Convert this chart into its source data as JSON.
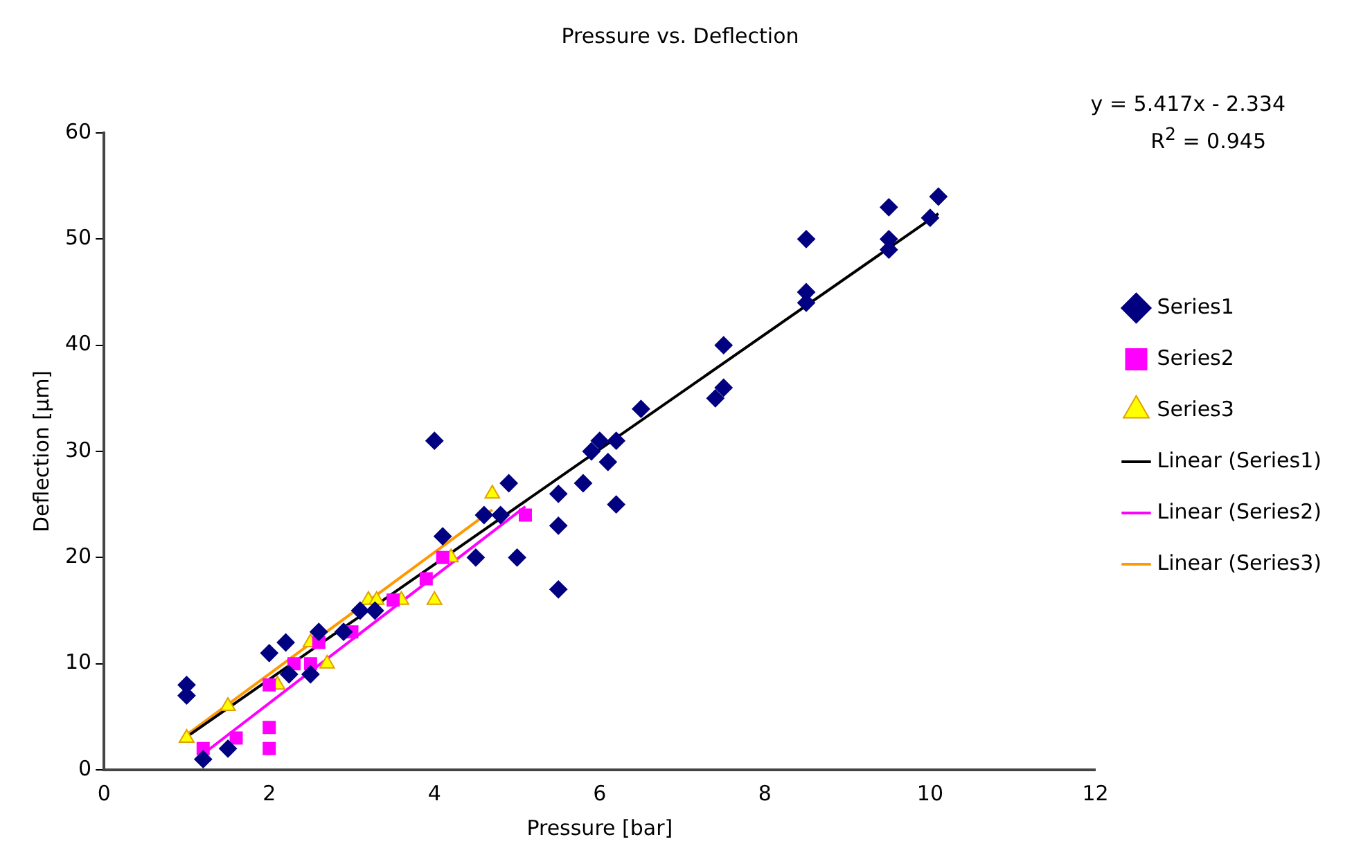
{
  "chart_data": {
    "type": "scatter",
    "title": "Pressure vs. Deflection",
    "xlabel": "Pressure [bar]",
    "ylabel": "Deflection [µm]",
    "xlim": [
      0,
      12
    ],
    "xticks": [
      0,
      2,
      4,
      6,
      8,
      10,
      12
    ],
    "ylim": [
      0,
      60
    ],
    "yticks": [
      0,
      10,
      20,
      30,
      40,
      50,
      60
    ],
    "grid": false,
    "legend": "right",
    "annotations": [
      "y = 5.417x - 2.334",
      "R$^{2}$ = 0.945"
    ],
    "series": [
      {
        "name": "Series1",
        "type": "scatter",
        "marker": "diamond",
        "color": "#000080",
        "x": [
          1.0,
          1.0,
          1.2,
          1.5,
          2.0,
          2.2,
          2.24,
          2.5,
          2.6,
          2.9,
          3.1,
          3.28,
          4.0,
          4.1,
          4.5,
          4.6,
          4.8,
          4.9,
          5.0,
          5.5,
          5.5,
          5.5,
          5.8,
          5.9,
          6.0,
          6.1,
          6.2,
          6.2,
          6.5,
          7.4,
          7.5,
          7.5,
          8.5,
          8.5,
          8.5,
          9.5,
          9.5,
          9.5,
          10.0,
          10.1
        ],
        "values": [
          8,
          7,
          1,
          2,
          11,
          12,
          9,
          9,
          13,
          13,
          15,
          15,
          31,
          22,
          20,
          24,
          24,
          27,
          20,
          26,
          23,
          17,
          27,
          30,
          31,
          29,
          31,
          25,
          34,
          35,
          36,
          40,
          50,
          45,
          44,
          53,
          50,
          49,
          52,
          54
        ]
      },
      {
        "name": "Series2",
        "type": "scatter",
        "marker": "square",
        "color": "#ff00ff",
        "x": [
          1.2,
          1.6,
          2.0,
          2.0,
          2.0,
          2.3,
          2.5,
          2.6,
          3.0,
          3.5,
          3.9,
          4.1,
          5.1
        ],
        "values": [
          2,
          3,
          4,
          2,
          8,
          10,
          10,
          12,
          13,
          16,
          18,
          20,
          24
        ]
      },
      {
        "name": "Series3",
        "type": "scatter",
        "marker": "triangle",
        "color": "#ffff00",
        "x": [
          1.0,
          1.5,
          2.1,
          2.5,
          2.7,
          3.2,
          3.3,
          3.6,
          4.0,
          4.2,
          4.7
        ],
        "values": [
          3,
          6,
          8,
          12,
          10,
          16,
          16,
          16,
          16,
          20,
          26
        ]
      },
      {
        "name": "Linear (Series1)",
        "type": "line",
        "marker": "none",
        "color": "#000000",
        "x": [
          1.0,
          10.1
        ],
        "values": [
          3.1,
          52.4
        ]
      },
      {
        "name": "Linear (Series2)",
        "type": "line",
        "marker": "none",
        "color": "#ff00ff",
        "x": [
          1.2,
          5.1
        ],
        "values": [
          1.5,
          24.8
        ]
      },
      {
        "name": "Linear (Series3)",
        "type": "line",
        "marker": "none",
        "color": "#ff9900",
        "x": [
          1.0,
          4.7
        ],
        "values": [
          3.3,
          24.5
        ]
      }
    ]
  }
}
